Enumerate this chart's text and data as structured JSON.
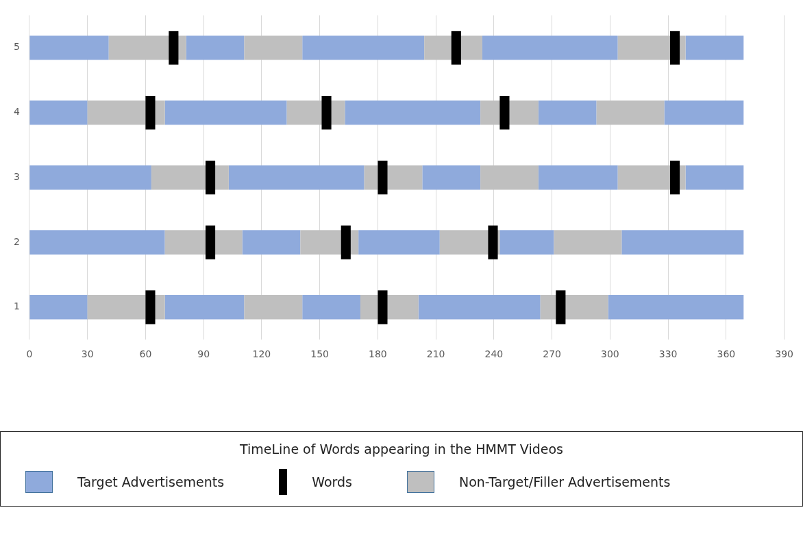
{
  "chart_data": {
    "type": "bar",
    "orientation": "horizontal",
    "legend_title": "TimeLine of Words appearing in the HMMT Videos",
    "legend": "bottom",
    "grid": "x",
    "categories": [
      "5",
      "4",
      "3",
      "2",
      "1"
    ],
    "xlim": [
      0,
      390
    ],
    "xticks": [
      0,
      30,
      60,
      90,
      120,
      150,
      180,
      210,
      240,
      270,
      300,
      330,
      360,
      390
    ],
    "series": [
      {
        "name": "Target Advertisements",
        "color": "#8faadc",
        "base": [
          0,
          0,
          0,
          0,
          0
        ],
        "values": [
          41,
          30,
          63,
          70,
          30
        ]
      },
      {
        "name": "Words",
        "color": "#000000",
        "base": [
          72,
          60,
          91,
          91,
          60
        ],
        "values": [
          5,
          5,
          5,
          5,
          5
        ]
      },
      {
        "name": "Non-Target/Filler Advertisements",
        "color": "#bfbfbf",
        "base": [
          41,
          30,
          63,
          70,
          30
        ],
        "values": [
          40,
          40,
          40,
          40,
          40
        ]
      },
      {
        "color": "#8faadc",
        "base": [
          81,
          70,
          103,
          110,
          70
        ],
        "values": [
          30,
          63,
          70,
          30,
          41
        ]
      },
      {
        "color": "#bfbfbf",
        "base": [
          111,
          133,
          173,
          140,
          111
        ],
        "values": [
          30,
          30,
          30,
          30,
          30
        ]
      },
      {
        "color": "#8faadc",
        "base": [
          141,
          163,
          203,
          170,
          141
        ],
        "values": [
          63,
          70,
          30,
          42,
          30
        ]
      },
      {
        "color": "#bfbfbf",
        "base": [
          204,
          233,
          233,
          212,
          171
        ],
        "values": [
          30,
          30,
          30,
          31,
          30
        ]
      },
      {
        "color": "#8faadc",
        "base": [
          234,
          263,
          263,
          243,
          201
        ],
        "values": [
          70,
          30,
          41,
          28,
          63
        ]
      },
      {
        "color": "#bfbfbf",
        "base": [
          304,
          293,
          304,
          271,
          264
        ],
        "values": [
          35,
          35,
          35,
          35,
          35
        ]
      },
      {
        "color": "#8faadc",
        "base": [
          339,
          328,
          339,
          306,
          299
        ],
        "values": [
          30,
          41,
          30,
          63,
          70
        ]
      },
      {
        "color": "#000000",
        "base": [
          218,
          151,
          180,
          161,
          180
        ],
        "values": [
          5,
          5,
          5,
          5,
          5
        ]
      },
      {
        "color": "#000000",
        "base": [
          331,
          243,
          331,
          237,
          272
        ],
        "values": [
          5,
          5,
          5,
          5,
          5
        ]
      }
    ]
  }
}
